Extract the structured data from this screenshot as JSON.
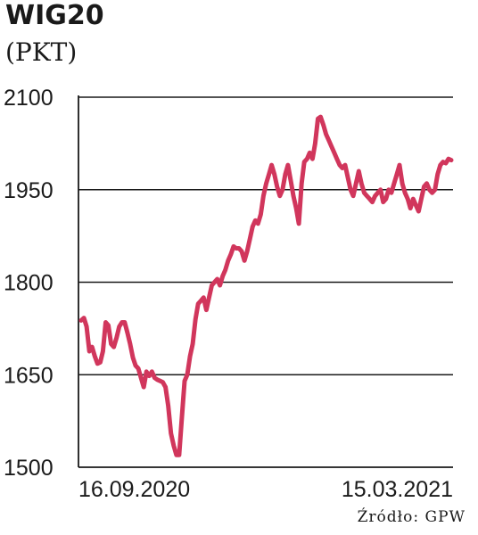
{
  "chart_data": {
    "type": "line",
    "title": "WIG20",
    "subtitle": "(PKT)",
    "xlabel": "",
    "ylabel": "",
    "x_tick_labels": [
      "16.09.2020",
      "15.03.2021"
    ],
    "y_ticks": [
      1500,
      1650,
      1800,
      1950,
      2100
    ],
    "ylim": [
      1500,
      2100
    ],
    "grid": true,
    "source": "Źródło: GPW",
    "colors": {
      "line": "#d1365c",
      "grid": "#1a1a1a",
      "text": "#1a1a1a"
    },
    "series": [
      {
        "values": [
          1738,
          1742,
          1728,
          1688,
          1695,
          1680,
          1668,
          1670,
          1688,
          1735,
          1730,
          1700,
          1695,
          1710,
          1728,
          1735,
          1735,
          1718,
          1700,
          1678,
          1665,
          1660,
          1645,
          1630,
          1655,
          1648,
          1655,
          1645,
          1642,
          1640,
          1638,
          1630,
          1600,
          1555,
          1535,
          1520,
          1520,
          1580,
          1640,
          1650,
          1680,
          1700,
          1740,
          1765,
          1770,
          1775,
          1755,
          1775,
          1795,
          1800,
          1805,
          1795,
          1810,
          1820,
          1835,
          1845,
          1858,
          1855,
          1855,
          1850,
          1835,
          1850,
          1870,
          1890,
          1900,
          1895,
          1910,
          1940,
          1960,
          1975,
          1990,
          1975,
          1955,
          1940,
          1950,
          1975,
          1990,
          1965,
          1940,
          1920,
          1895,
          1960,
          1995,
          2000,
          2010,
          2000,
          2025,
          2065,
          2068,
          2055,
          2040,
          2030,
          2020,
          2010,
          2000,
          1990,
          1985,
          1990,
          1970,
          1950,
          1940,
          1960,
          1980,
          1960,
          1945,
          1940,
          1935,
          1930,
          1940,
          1945,
          1950,
          1930,
          1935,
          1950,
          1945,
          1960,
          1975,
          1990,
          1960,
          1945,
          1935,
          1920,
          1935,
          1925,
          1915,
          1935,
          1955,
          1960,
          1950,
          1945,
          1950,
          1975,
          1990,
          1995,
          1993,
          2000,
          1998
        ]
      }
    ]
  }
}
